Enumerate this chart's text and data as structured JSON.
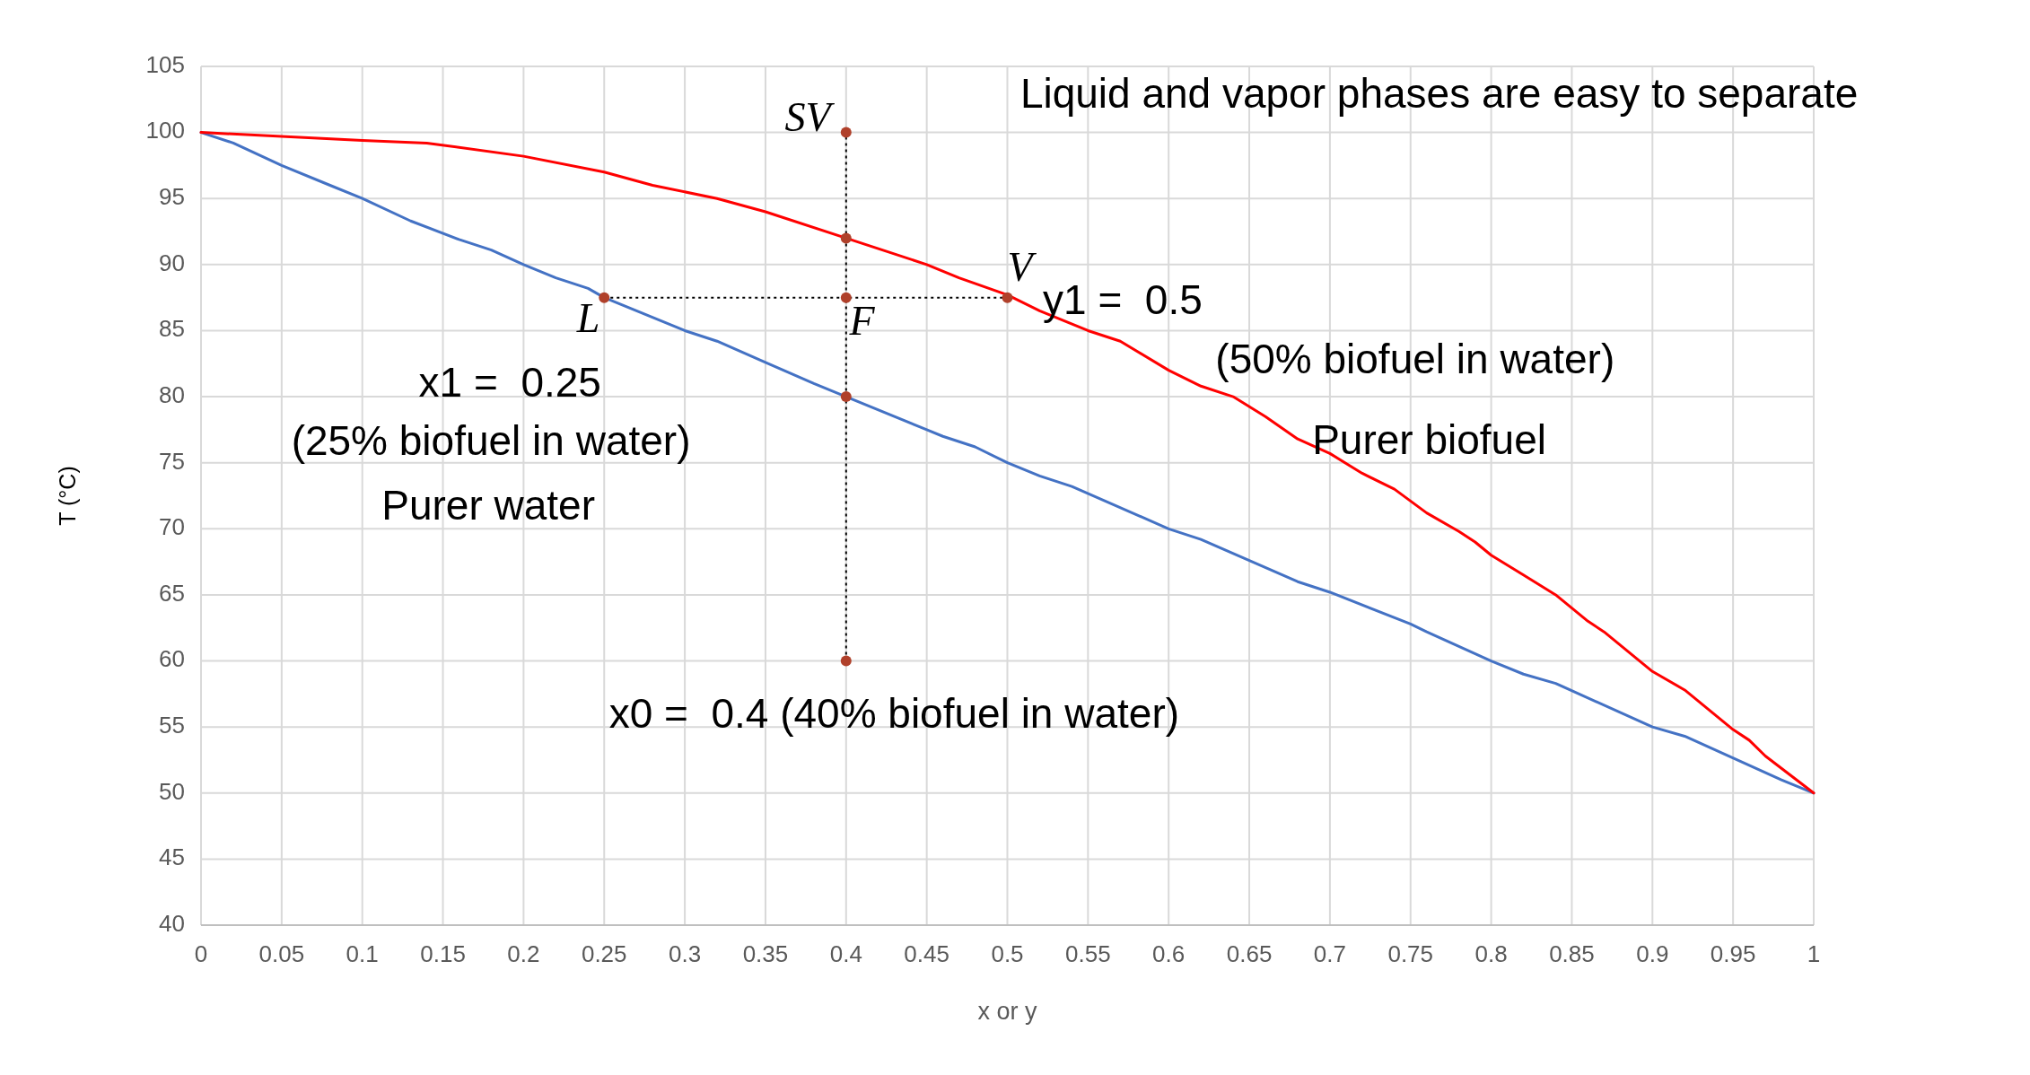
{
  "chart_data": {
    "type": "line",
    "xlabel": "x or y",
    "ylabel": "T (°C)",
    "xlim": [
      0,
      1
    ],
    "ylim": [
      40,
      105
    ],
    "xticks": [
      0,
      0.05,
      0.1,
      0.15,
      0.2,
      0.25,
      0.3,
      0.35,
      0.4,
      0.45,
      0.5,
      0.55,
      0.6,
      0.65,
      0.7,
      0.75,
      0.8,
      0.85,
      0.9,
      0.95,
      1
    ],
    "yticks": [
      40,
      45,
      50,
      55,
      60,
      65,
      70,
      75,
      80,
      85,
      90,
      95,
      100,
      105
    ],
    "grid": true,
    "series": [
      {
        "color": "#4472c4",
        "marker": "none",
        "line_style": "solid",
        "x": [
          0,
          0.02,
          0.05,
          0.08,
          0.1,
          0.13,
          0.16,
          0.18,
          0.2,
          0.22,
          0.24,
          0.25,
          0.3,
          0.32,
          0.35,
          0.38,
          0.4,
          0.45,
          0.46,
          0.48,
          0.5,
          0.52,
          0.54,
          0.6,
          0.62,
          0.68,
          0.7,
          0.75,
          0.76,
          0.8,
          0.82,
          0.84,
          0.9,
          0.92,
          0.98,
          1
        ],
        "values": [
          100,
          99.2,
          97.5,
          96,
          95,
          93.3,
          91.9,
          91.1,
          90,
          89,
          88.2,
          87.5,
          85,
          84.2,
          82.6,
          81,
          80,
          77.5,
          77,
          76.2,
          75,
          74,
          73.2,
          70,
          69.2,
          66,
          65.2,
          62.8,
          62.2,
          60,
          59,
          58.3,
          55,
          54.3,
          51,
          50
        ]
      },
      {
        "color": "#ff0000",
        "marker": "none",
        "line_style": "solid",
        "x": [
          0,
          0.05,
          0.1,
          0.14,
          0.2,
          0.25,
          0.28,
          0.32,
          0.35,
          0.4,
          0.42,
          0.45,
          0.47,
          0.5,
          0.52,
          0.55,
          0.57,
          0.6,
          0.62,
          0.64,
          0.66,
          0.68,
          0.7,
          0.72,
          0.74,
          0.76,
          0.78,
          0.79,
          0.8,
          0.82,
          0.84,
          0.85,
          0.86,
          0.87,
          0.9,
          0.92,
          0.95,
          0.96,
          0.97,
          1
        ],
        "values": [
          100,
          99.7,
          99.4,
          99.2,
          98.2,
          97,
          96,
          95,
          94,
          92,
          91.2,
          90,
          89,
          87.7,
          86.5,
          85,
          84.2,
          82,
          80.8,
          80,
          78.5,
          76.8,
          75.7,
          74.2,
          73,
          71.2,
          69.8,
          69,
          68,
          66.5,
          65,
          64,
          63,
          62.2,
          59.2,
          57.8,
          54.8,
          54,
          52.8,
          50
        ]
      },
      {
        "color": "#000000",
        "marker": "none",
        "line_style": "dotted",
        "x": [
          0.4,
          0.4
        ],
        "values": [
          60,
          100
        ]
      },
      {
        "color": "#000000",
        "marker": "none",
        "line_style": "dotted",
        "x": [
          0.25,
          0.5
        ],
        "values": [
          87.5,
          87.5
        ]
      },
      {
        "type": "scatter",
        "color": "#b0402a",
        "marker": "circle",
        "x": [
          0.4,
          0.4,
          0.4,
          0.25,
          0.5,
          0.4,
          0.4
        ],
        "values": [
          100,
          92,
          87.5,
          87.5,
          87.5,
          80,
          60
        ]
      }
    ],
    "annotations": [
      "Liquid and vapor phases are easy to separate",
      "SV",
      "V",
      "y1 =  0.5",
      "(50% biofuel in water)",
      "Purer biofuel",
      "L",
      "F",
      "x1 =  0.25",
      "(25% biofuel in water)",
      "Purer water",
      "x0 =  0.4 (40% biofuel in water)"
    ]
  }
}
